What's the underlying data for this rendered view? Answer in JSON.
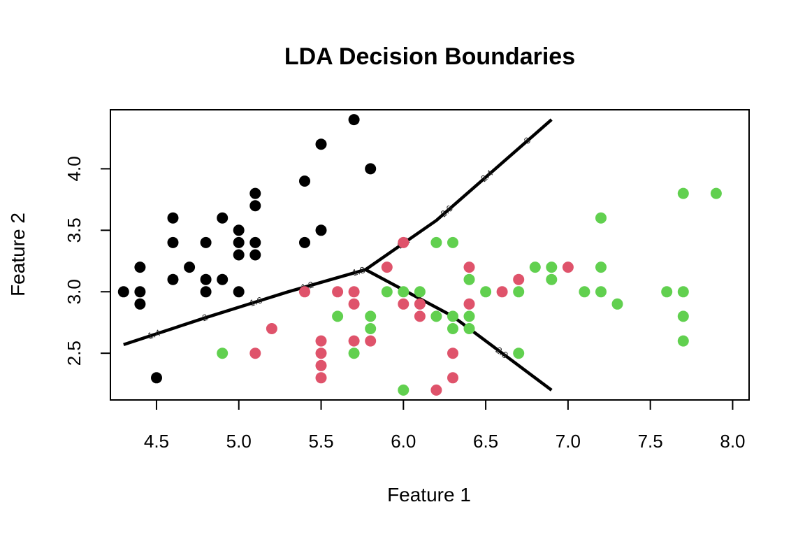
{
  "chart_data": {
    "type": "scatter",
    "title": "LDA Decision Boundaries",
    "xlabel": "Feature 1",
    "ylabel": "Feature 2",
    "xlim": [
      4.22,
      8.1
    ],
    "ylim": [
      2.12,
      4.48
    ],
    "xticks": [
      "4.5",
      "5.0",
      "5.5",
      "6.0",
      "6.5",
      "7.0",
      "7.5",
      "8.0"
    ],
    "yticks": [
      "2.5",
      "3.0",
      "3.5",
      "4.0"
    ],
    "grid": false,
    "legend": "none",
    "series": [
      {
        "color": "#000000",
        "points": [
          [
            4.3,
            3.0
          ],
          [
            4.4,
            3.2
          ],
          [
            4.4,
            3.0
          ],
          [
            4.4,
            2.9
          ],
          [
            4.5,
            2.3
          ],
          [
            4.6,
            3.6
          ],
          [
            4.6,
            3.4
          ],
          [
            4.6,
            3.1
          ],
          [
            4.7,
            3.2
          ],
          [
            4.8,
            3.4
          ],
          [
            4.8,
            3.1
          ],
          [
            4.8,
            3.0
          ],
          [
            4.9,
            3.6
          ],
          [
            4.9,
            3.1
          ],
          [
            5.0,
            3.5
          ],
          [
            5.0,
            3.4
          ],
          [
            5.0,
            3.3
          ],
          [
            5.0,
            3.0
          ],
          [
            5.1,
            3.8
          ],
          [
            5.1,
            3.7
          ],
          [
            5.1,
            3.4
          ],
          [
            5.1,
            3.3
          ],
          [
            5.4,
            3.9
          ],
          [
            5.4,
            3.4
          ],
          [
            5.5,
            4.2
          ],
          [
            5.5,
            3.5
          ],
          [
            5.7,
            4.4
          ],
          [
            5.8,
            4.0
          ]
        ]
      },
      {
        "color": "#DF536B",
        "points": [
          [
            5.1,
            2.5
          ],
          [
            5.2,
            2.7
          ],
          [
            5.4,
            3.0
          ],
          [
            5.5,
            2.6
          ],
          [
            5.5,
            2.5
          ],
          [
            5.5,
            2.4
          ],
          [
            5.5,
            2.3
          ],
          [
            5.6,
            3.0
          ],
          [
            5.7,
            3.0
          ],
          [
            5.7,
            2.9
          ],
          [
            5.7,
            2.6
          ],
          [
            5.8,
            2.6
          ],
          [
            5.9,
            3.2
          ],
          [
            6.0,
            3.4
          ],
          [
            6.0,
            2.9
          ],
          [
            6.1,
            2.9
          ],
          [
            6.1,
            2.8
          ],
          [
            6.2,
            2.2
          ],
          [
            6.3,
            2.5
          ],
          [
            6.3,
            2.3
          ],
          [
            6.4,
            3.2
          ],
          [
            6.4,
            2.9
          ],
          [
            6.6,
            3.0
          ],
          [
            6.7,
            3.1
          ],
          [
            7.0,
            3.2
          ]
        ]
      },
      {
        "color": "#61D04F",
        "points": [
          [
            4.9,
            2.5
          ],
          [
            5.6,
            2.8
          ],
          [
            5.7,
            2.5
          ],
          [
            5.8,
            2.8
          ],
          [
            5.8,
            2.7
          ],
          [
            5.9,
            3.0
          ],
          [
            6.0,
            3.0
          ],
          [
            6.0,
            2.2
          ],
          [
            6.1,
            3.0
          ],
          [
            6.2,
            3.4
          ],
          [
            6.2,
            2.8
          ],
          [
            6.3,
            3.4
          ],
          [
            6.3,
            2.8
          ],
          [
            6.3,
            2.7
          ],
          [
            6.4,
            3.1
          ],
          [
            6.4,
            2.8
          ],
          [
            6.4,
            2.7
          ],
          [
            6.5,
            3.0
          ],
          [
            6.7,
            3.0
          ],
          [
            6.7,
            2.5
          ],
          [
            6.8,
            3.2
          ],
          [
            6.9,
            3.2
          ],
          [
            6.9,
            3.1
          ],
          [
            7.1,
            3.0
          ],
          [
            7.2,
            3.6
          ],
          [
            7.2,
            3.2
          ],
          [
            7.2,
            3.0
          ],
          [
            7.3,
            2.9
          ],
          [
            7.6,
            3.0
          ],
          [
            7.7,
            3.8
          ],
          [
            7.7,
            3.0
          ],
          [
            7.7,
            2.8
          ],
          [
            7.7,
            2.6
          ],
          [
            7.9,
            3.8
          ]
        ]
      }
    ],
    "boundaries": [
      {
        "points": [
          [
            4.3,
            2.57
          ],
          [
            4.8,
            2.79
          ],
          [
            5.3,
            3.0
          ],
          [
            5.77,
            3.18
          ],
          [
            6.2,
            3.58
          ],
          [
            6.9,
            4.4
          ]
        ],
        "labels": [
          "1.4",
          "2",
          "1.6",
          "1.2",
          "1.8",
          "2.2",
          "2.6",
          "2.4",
          "3"
        ]
      },
      {
        "points": [
          [
            5.77,
            3.18
          ],
          [
            6.3,
            2.8
          ],
          [
            6.9,
            2.2
          ]
        ],
        "labels": [
          "2.8"
        ]
      }
    ]
  }
}
